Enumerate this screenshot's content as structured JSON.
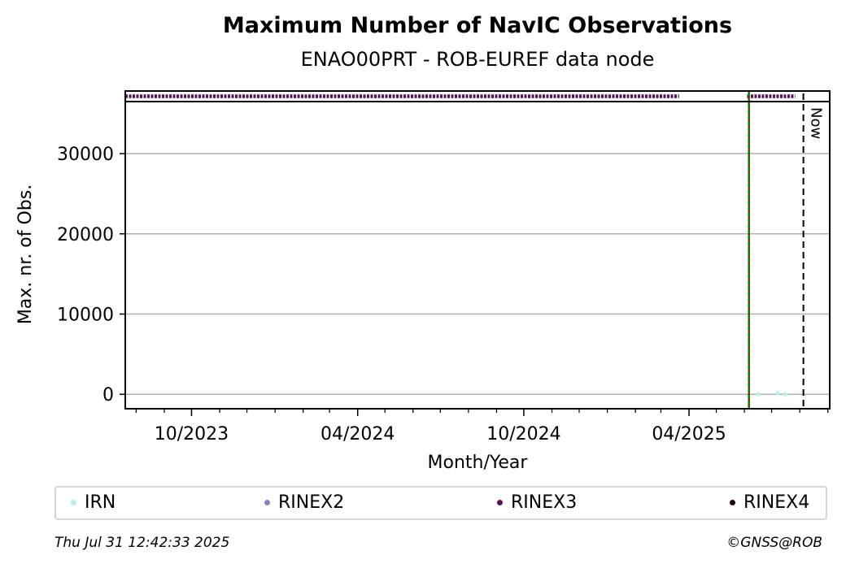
{
  "chart_data": {
    "type": "scatter",
    "title": "Maximum Number of NavIC Observations",
    "subtitle": "ENAO00PRT - ROB-EUREF data node",
    "xlabel": "Month/Year",
    "ylabel": "Max. nr. of Obs.",
    "xlim": [
      "2023-07-20",
      "2025-09-03"
    ],
    "ylim": [
      -1800,
      37800
    ],
    "x_ticks": [
      {
        "date": "2023-10-01",
        "label": "10/2023"
      },
      {
        "date": "2024-04-01",
        "label": "04/2024"
      },
      {
        "date": "2024-10-01",
        "label": "10/2024"
      },
      {
        "date": "2025-04-01",
        "label": "04/2025"
      }
    ],
    "x_minor_ticks": [
      "2023-08-01",
      "2023-09-01",
      "2023-11-01",
      "2023-12-01",
      "2024-01-01",
      "2024-02-01",
      "2024-03-01",
      "2024-05-01",
      "2024-06-01",
      "2024-07-01",
      "2024-08-01",
      "2024-09-01",
      "2024-11-01",
      "2024-12-01",
      "2025-01-01",
      "2025-02-01",
      "2025-03-01",
      "2025-05-01",
      "2025-06-01",
      "2025-07-01",
      "2025-08-01",
      "2025-09-01"
    ],
    "y_ticks": [
      0,
      10000,
      20000,
      30000
    ],
    "grid": "y",
    "legend_position": "bottom",
    "series": [
      {
        "name": "IRN",
        "color": "#b3f0f0",
        "kind": "points",
        "points": [
          [
            "2025-06-16",
            0
          ],
          [
            "2025-07-08",
            120
          ],
          [
            "2025-07-16",
            0
          ]
        ]
      },
      {
        "name": "RINEX2",
        "color": "#8c7fbf",
        "kind": "none",
        "points": []
      },
      {
        "name": "RINEX3",
        "color": "#5c0f5c",
        "kind": "band",
        "ranges": [
          [
            "2023-07-20",
            "2025-03-21"
          ],
          [
            "2025-06-04",
            "2025-07-27"
          ]
        ]
      },
      {
        "name": "RINEX4",
        "color": "#200010",
        "kind": "none",
        "points": []
      }
    ],
    "markers": [
      {
        "date": "2025-06-06",
        "style": "green-red-dashed"
      },
      {
        "date": "2025-08-05",
        "style": "black-dashed",
        "label": "Now"
      }
    ]
  },
  "footer": {
    "timestamp": "Thu Jul 31 12:42:33 2025",
    "copyright": "©GNSS@ROB"
  }
}
